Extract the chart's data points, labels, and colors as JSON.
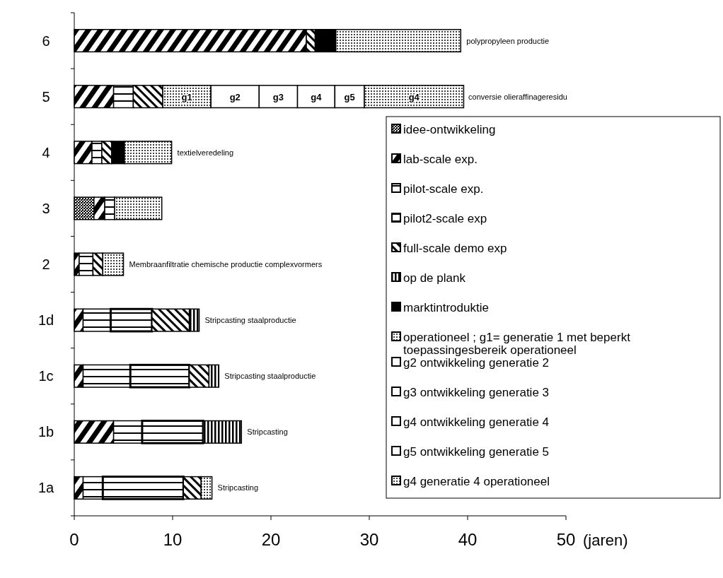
{
  "chart_data": {
    "type": "bar",
    "orientation": "horizontal",
    "stacked": true,
    "categories": [
      "6",
      "5",
      "4",
      "3",
      "2",
      "1d",
      "1c",
      "1b",
      "1a"
    ],
    "xlabel": "(jaren)",
    "xlim": [
      0,
      50
    ],
    "xticks": [
      0,
      10,
      20,
      30,
      40,
      50
    ],
    "grid": false,
    "legend": "bottom right",
    "series": [
      {
        "name": "idee-ontwikkeling",
        "color": "#000000",
        "values": [
          null,
          null,
          null,
          2,
          null,
          null,
          null,
          null,
          null
        ]
      },
      {
        "name": "lab-scale exp.",
        "color": "#000000",
        "values": [
          23.6,
          4,
          1.8,
          1.1,
          0.5,
          0.9,
          0.9,
          4,
          0.9
        ]
      },
      {
        "name": "pilot-scale exp.",
        "color": "#000000",
        "values": [
          null,
          2,
          1,
          1,
          1.4,
          2.8,
          4.8,
          2.9,
          2
        ]
      },
      {
        "name": "pilot2-scale exp",
        "color": "#000000",
        "values": [
          null,
          null,
          null,
          null,
          null,
          4.2,
          6,
          6.2,
          8.2
        ]
      },
      {
        "name": "full-scale demo exp",
        "color": "#000000",
        "values": [
          0.9,
          3,
          1,
          null,
          1,
          3.8,
          2,
          null,
          1.8
        ]
      },
      {
        "name": "op de plank",
        "color": "#000000",
        "values": [
          null,
          null,
          null,
          null,
          null,
          1,
          1,
          3.9,
          null
        ]
      },
      {
        "name": "marktintroduktie",
        "color": "#000000",
        "values": [
          2.1,
          null,
          1.3,
          null,
          null,
          null,
          null,
          null,
          null
        ]
      },
      {
        "name": "operationeel ; g1= generatie 1 met beperkt toepassingesbereik operationeel",
        "color": "#000000",
        "values": [
          12.7,
          4.9,
          4.8,
          4.8,
          2.1,
          null,
          null,
          null,
          1.1
        ],
        "value_labels": [
          null,
          "g1",
          null,
          null,
          null,
          null,
          null,
          null,
          null
        ]
      },
      {
        "name": "g2 ontwikkeling generatie 2",
        "color": "#ffffff",
        "values": [
          null,
          4.9,
          null,
          null,
          null,
          null,
          null,
          null,
          null
        ],
        "value_labels": [
          null,
          "g2",
          null,
          null,
          null,
          null,
          null,
          null,
          null
        ]
      },
      {
        "name": "g3 ontwikkeling generatie 3",
        "color": "#ffffff",
        "values": [
          null,
          3.9,
          null,
          null,
          null,
          null,
          null,
          null,
          null
        ],
        "value_labels": [
          null,
          "g3",
          null,
          null,
          null,
          null,
          null,
          null,
          null
        ]
      },
      {
        "name": "g4 ontwikkeling generatie 4",
        "color": "#ffffff",
        "values": [
          null,
          3.8,
          null,
          null,
          null,
          null,
          null,
          null,
          null
        ],
        "value_labels": [
          null,
          "g4",
          null,
          null,
          null,
          null,
          null,
          null,
          null
        ]
      },
      {
        "name": "g5 ontwikkeling generatie 5",
        "color": "#ffffff",
        "values": [
          null,
          3,
          null,
          null,
          null,
          null,
          null,
          null,
          null
        ],
        "value_labels": [
          null,
          "g5",
          null,
          null,
          null,
          null,
          null,
          null,
          null
        ]
      },
      {
        "name": "g4 generatie 4 operationeel",
        "color": "#000000",
        "values": [
          null,
          10.1,
          null,
          null,
          null,
          null,
          null,
          null,
          null
        ],
        "value_labels": [
          null,
          "g4",
          null,
          null,
          null,
          null,
          null,
          null,
          null
        ]
      }
    ],
    "annotations": [
      {
        "text": "polypropyleen productie",
        "x": 39.3,
        "y": "6"
      },
      {
        "text": "conversie olieraffinageresidu",
        "x": 39.5,
        "y": "5"
      },
      {
        "text": "textielveredeling",
        "x": 9.9,
        "y": "4"
      },
      {
        "text": "Membraanfiltratie chemische productie complexvormers",
        "x": 5,
        "y": "2"
      },
      {
        "text": "Stripcasting staalproductie",
        "x": 12.7,
        "y": "1d"
      },
      {
        "text": "Stripcasting staalproductie",
        "x": 14.7,
        "y": "1c"
      },
      {
        "text": "Stripcasting",
        "x": 17,
        "y": "1b"
      },
      {
        "text": "Stripcasting",
        "x": 14,
        "y": "1a"
      }
    ]
  }
}
